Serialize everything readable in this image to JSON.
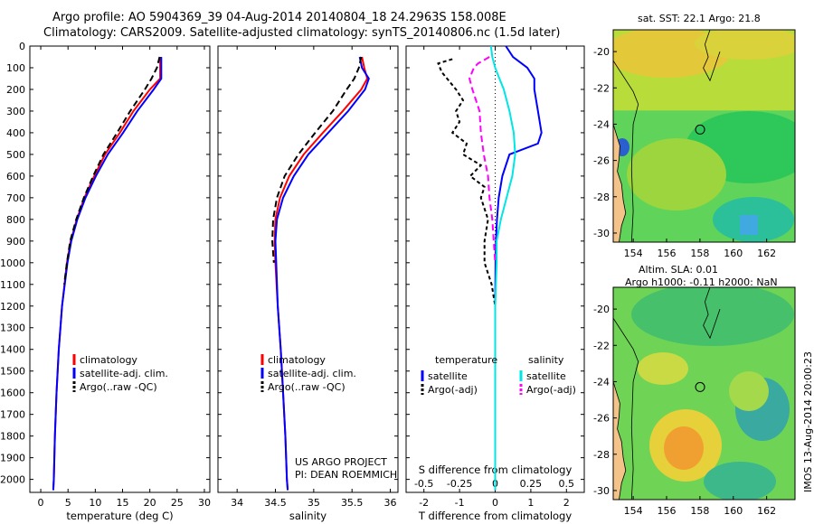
{
  "header": {
    "line1": "Argo profile: AO 5904369_39 04-Aug-2014 20140804_18 24.2963S 158.008E",
    "line2": "Climatology: CARS2009. Satellite-adjusted climatology: synTS_20140806.nc (1.5d later)"
  },
  "colors": {
    "clim": "#ff0000",
    "sat": "#0000ff",
    "argo": "#000000",
    "sal_sat": "#00e5e5",
    "sal_argo": "#ff00ff"
  },
  "depth_ticks": [
    "0",
    "100",
    "200",
    "300",
    "400",
    "500",
    "600",
    "700",
    "800",
    "900",
    "1000",
    "1100",
    "1200",
    "1300",
    "1400",
    "1500",
    "1600",
    "1700",
    "1800",
    "1900",
    "2000"
  ],
  "chart_data": [
    {
      "type": "line",
      "name": "temperature",
      "xlabel": "temperature (deg C)",
      "ylabel": "depth",
      "xlim": [
        -2,
        31
      ],
      "ylim": [
        2060,
        0
      ],
      "xticks": [
        "0",
        "5",
        "10",
        "15",
        "20",
        "25",
        "30"
      ],
      "legend": [
        "climatology",
        "satellite-adj. clim.",
        "Argo(..raw -QC)"
      ],
      "series": [
        {
          "name": "climatology",
          "depth": [
            50,
            100,
            150,
            200,
            300,
            400,
            500,
            600,
            700,
            800,
            900,
            1000,
            1200,
            1400,
            1600,
            1800,
            2000,
            2050
          ],
          "values": [
            21.9,
            21.9,
            21.9,
            20.0,
            17.0,
            14.5,
            11.8,
            9.8,
            8.0,
            6.6,
            5.5,
            4.8,
            3.9,
            3.3,
            2.9,
            2.6,
            2.4,
            2.3
          ]
        },
        {
          "name": "satellite-adj. clim.",
          "depth": [
            50,
            100,
            150,
            200,
            300,
            400,
            500,
            600,
            700,
            800,
            900,
            1000,
            1200,
            1400,
            1600,
            1800,
            2000,
            2050
          ],
          "values": [
            22.1,
            22.1,
            22.1,
            20.7,
            17.7,
            15.1,
            12.3,
            10.1,
            8.2,
            6.7,
            5.6,
            4.9,
            3.9,
            3.3,
            2.9,
            2.6,
            2.4,
            2.3
          ]
        },
        {
          "name": "Argo(..raw -QC)",
          "depth": [
            50,
            100,
            150,
            200,
            300,
            400,
            500,
            600,
            700,
            800,
            900,
            1000,
            1100
          ],
          "values": [
            21.8,
            21.3,
            20.3,
            19.1,
            16.4,
            14.0,
            11.5,
            9.6,
            7.9,
            6.5,
            5.4,
            4.8,
            4.3
          ]
        }
      ]
    },
    {
      "type": "line",
      "name": "salinity",
      "xlabel": "salinity",
      "ylabel": "depth",
      "xlim": [
        33.75,
        36.1
      ],
      "ylim": [
        2060,
        0
      ],
      "xticks": [
        "34",
        "34.5",
        "35",
        "35.5",
        "36"
      ],
      "legend": [
        "climatology",
        "satellite-adj. clim.",
        "Argo(..raw -QC)"
      ],
      "annotation": [
        "US ARGO PROJECT",
        "PI: DEAN ROEMMICH"
      ],
      "series": [
        {
          "name": "climatology",
          "depth": [
            50,
            100,
            150,
            200,
            300,
            400,
            500,
            600,
            700,
            800,
            900,
            1000,
            1200,
            1400,
            1600,
            1800,
            2000,
            2050
          ],
          "values": [
            35.63,
            35.66,
            35.7,
            35.62,
            35.38,
            35.12,
            34.87,
            34.68,
            34.56,
            34.5,
            34.49,
            34.5,
            34.53,
            34.57,
            34.6,
            34.63,
            34.65,
            34.66
          ]
        },
        {
          "name": "satellite-adj. clim.",
          "depth": [
            50,
            100,
            150,
            200,
            300,
            400,
            500,
            600,
            700,
            800,
            900,
            1000,
            1200,
            1400,
            1600,
            1800,
            2000,
            2050
          ],
          "values": [
            35.6,
            35.63,
            35.72,
            35.67,
            35.45,
            35.19,
            34.93,
            34.74,
            34.6,
            34.52,
            34.5,
            34.51,
            34.53,
            34.57,
            34.6,
            34.63,
            34.65,
            34.66
          ]
        },
        {
          "name": "Argo(..raw -QC)",
          "depth": [
            50,
            100,
            150,
            200,
            300,
            400,
            500,
            600,
            700,
            800,
            900,
            1000
          ],
          "values": [
            35.62,
            35.59,
            35.53,
            35.43,
            35.25,
            35.02,
            34.8,
            34.62,
            34.52,
            34.47,
            34.46,
            34.48
          ]
        }
      ]
    },
    {
      "type": "line",
      "name": "difference",
      "xlabel": "T difference from climatology",
      "xlabel_top": "S difference from climatology",
      "xlim": [
        -2.5,
        2.5
      ],
      "ylim": [
        2060,
        0
      ],
      "xticks": [
        "-2",
        "-1",
        "0",
        "1",
        "2"
      ],
      "sticks": [
        "-0.5",
        "-0.25",
        "0",
        "0.25",
        "0.5"
      ],
      "legend_headers": [
        "temperature",
        "salinity"
      ],
      "legend": [
        "satellite",
        "Argo(-adj)",
        "satellite",
        "Argo(-adj)"
      ],
      "series": [
        {
          "name": "T satellite",
          "depth": [
            0,
            50,
            100,
            150,
            200,
            300,
            400,
            450,
            500,
            600,
            700,
            800,
            900,
            1000,
            1200,
            1500,
            2000,
            2050
          ],
          "values": [
            0.3,
            0.5,
            0.9,
            1.1,
            1.1,
            1.2,
            1.3,
            1.2,
            0.4,
            0.2,
            0.1,
            0.05,
            0.02,
            0.01,
            0.0,
            0.0,
            0.0,
            0.0
          ]
        },
        {
          "name": "T Argo(-adj)",
          "depth": [
            60,
            80,
            120,
            200,
            250,
            300,
            350,
            400,
            450,
            500,
            550,
            600,
            650,
            700,
            800,
            900,
            1000,
            1100,
            1200
          ],
          "values": [
            -1.2,
            -1.6,
            -1.5,
            -1.1,
            -0.9,
            -1.1,
            -1.0,
            -1.2,
            -0.8,
            -0.9,
            -0.4,
            -0.7,
            -0.3,
            -0.4,
            -0.2,
            -0.3,
            -0.3,
            -0.1,
            0.0
          ]
        },
        {
          "name": "S satellite",
          "depth": [
            0,
            50,
            100,
            150,
            200,
            300,
            400,
            500,
            600,
            700,
            800,
            900,
            1000,
            1200,
            1500,
            2000,
            2050
          ],
          "values": [
            -0.03,
            -0.02,
            0.0,
            0.03,
            0.06,
            0.1,
            0.13,
            0.14,
            0.12,
            0.08,
            0.04,
            0.01,
            0.01,
            0.0,
            0.0,
            0.0,
            0.0
          ]
        },
        {
          "name": "S Argo(-adj)",
          "depth": [
            50,
            80,
            100,
            150,
            200,
            300,
            400,
            500,
            600,
            700,
            800,
            900,
            1000
          ],
          "values": [
            -0.04,
            -0.12,
            -0.15,
            -0.18,
            -0.16,
            -0.11,
            -0.1,
            -0.08,
            -0.05,
            -0.04,
            -0.02,
            -0.01,
            0.0
          ]
        }
      ]
    }
  ],
  "maps": {
    "sst_title": "sat. SST: 22.1  Argo: 21.8",
    "sla_title1": "Altim. SLA: 0.01",
    "sla_title2": "Argo h1000: -0.11  h2000: NaN",
    "lon_ticks": [
      "154",
      "156",
      "158",
      "160",
      "162"
    ],
    "lat_ticks": [
      "-20",
      "-22",
      "-24",
      "-26",
      "-28",
      "-30"
    ],
    "float_lon": 158.008,
    "float_lat": -24.2963
  },
  "stamp": "IMOS 13-Aug-2014 20:00:23"
}
